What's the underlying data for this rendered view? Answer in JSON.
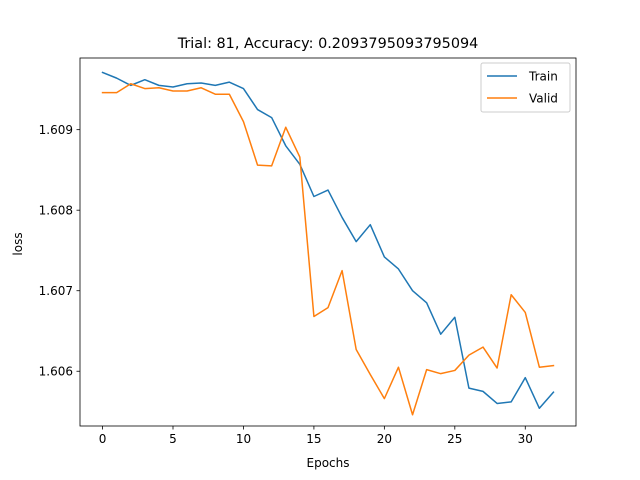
{
  "chart_data": {
    "type": "line",
    "title": "Trial: 81, Accuracy: 0.2093795093795094",
    "xlabel": "Epochs",
    "ylabel": "loss",
    "xlim": [
      -1.6,
      33.6
    ],
    "ylim": [
      1.60532,
      1.60989
    ],
    "xticks": [
      0,
      5,
      10,
      15,
      20,
      25,
      30
    ],
    "yticks": [
      1.606,
      1.607,
      1.608,
      1.609
    ],
    "ytick_labels": [
      "1.606",
      "1.607",
      "1.608",
      "1.609"
    ],
    "grid": false,
    "legend_position": "top-right",
    "x": [
      0,
      1,
      2,
      3,
      4,
      5,
      6,
      7,
      8,
      9,
      10,
      11,
      12,
      13,
      14,
      15,
      16,
      17,
      18,
      19,
      20,
      21,
      22,
      23,
      24,
      25,
      26,
      27,
      28,
      29,
      30,
      31,
      32
    ],
    "series": [
      {
        "name": "Train",
        "color": "#1f77b4",
        "values": [
          1.60971,
          1.60964,
          1.60955,
          1.60962,
          1.60955,
          1.60953,
          1.60957,
          1.60958,
          1.60955,
          1.60959,
          1.60951,
          1.60925,
          1.60915,
          1.6088,
          1.60857,
          1.60817,
          1.60825,
          1.60791,
          1.60761,
          1.60782,
          1.60742,
          1.60727,
          1.607,
          1.60685,
          1.60646,
          1.60667,
          1.60579,
          1.60575,
          1.6056,
          1.60562,
          1.60592,
          1.60554,
          1.60574
        ]
      },
      {
        "name": "Valid",
        "color": "#ff7f0e",
        "values": [
          1.60946,
          1.60946,
          1.60957,
          1.60951,
          1.60952,
          1.60948,
          1.60948,
          1.60952,
          1.60944,
          1.60944,
          1.6091,
          1.60856,
          1.60855,
          1.60903,
          1.60866,
          1.60668,
          1.60679,
          1.60725,
          1.60627,
          1.60596,
          1.60566,
          1.60605,
          1.60546,
          1.60602,
          1.60597,
          1.60601,
          1.6062,
          1.6063,
          1.60604,
          1.60695,
          1.60673,
          1.60605,
          1.60607
        ]
      }
    ]
  }
}
